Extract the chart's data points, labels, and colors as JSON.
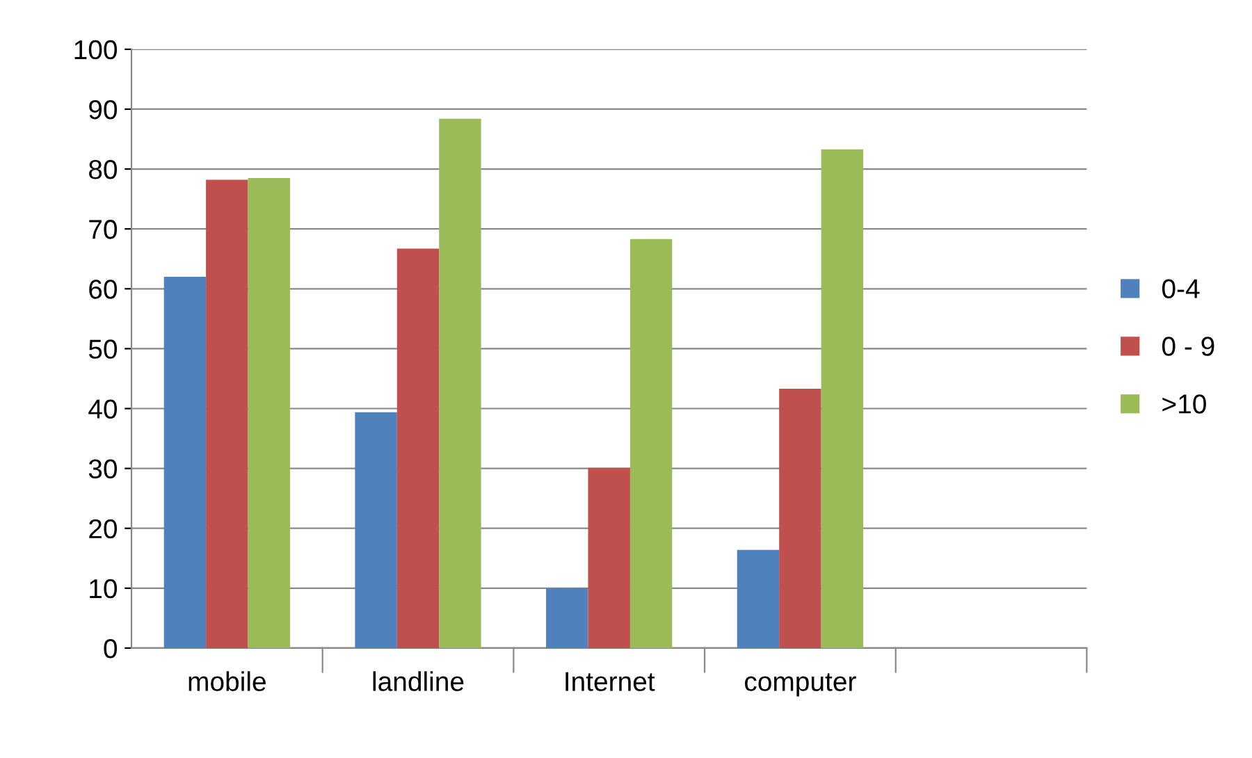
{
  "chart_data": {
    "type": "bar",
    "categories": [
      "mobile",
      "landline",
      "Internet",
      "computer",
      null
    ],
    "series": [
      {
        "name": "0-4",
        "color": "#4f81bd",
        "values": [
          62,
          39.4,
          10,
          16.4,
          null
        ]
      },
      {
        "name": "0 - 9",
        "color": "#c0504d",
        "values": [
          78.2,
          66.7,
          30.1,
          43.3,
          null
        ]
      },
      {
        "name": ">10",
        "color": "#9bbb59",
        "values": [
          78.5,
          88.4,
          68.3,
          83.3,
          null
        ]
      }
    ],
    "ylim": [
      0,
      100
    ],
    "yticks": [
      0,
      10,
      20,
      30,
      40,
      50,
      60,
      70,
      80,
      90,
      100
    ],
    "grid": "y",
    "legend": "right"
  }
}
